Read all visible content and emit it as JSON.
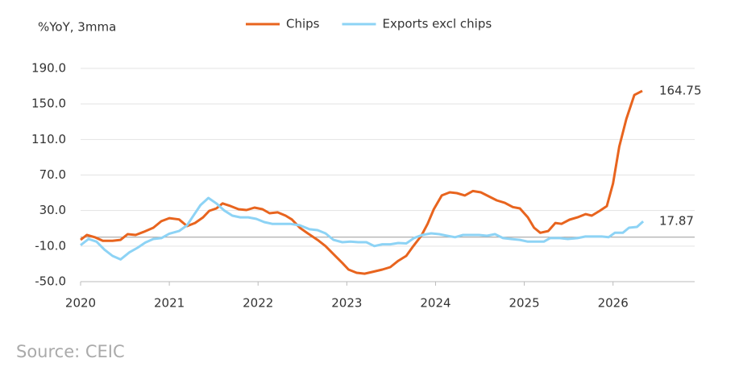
{
  "chart_data": {
    "type": "line",
    "y_axis_label": "%YoY, 3mma",
    "source": "Source: CEIC",
    "xlim": [
      2020,
      2026.92
    ],
    "xticks": [
      2020,
      2021,
      2022,
      2023,
      2024,
      2025,
      2026
    ],
    "ylim": [
      -50,
      190
    ],
    "yticks": [
      {
        "value": 190,
        "label": "190.0"
      },
      {
        "value": 150,
        "label": "150.0"
      },
      {
        "value": 110,
        "label": "110.0"
      },
      {
        "value": 70,
        "label": "70.0"
      },
      {
        "value": 30,
        "label": "30.0"
      },
      {
        "value": -10,
        "label": "-10.0"
      },
      {
        "value": -50,
        "label": "-50.0"
      }
    ],
    "grid": true,
    "series": [
      {
        "name": "Chips",
        "color": "#e8641e",
        "x": [
          2020,
          2020.07,
          2020.16,
          2020.25,
          2020.36,
          2020.45,
          2020.53,
          2020.62,
          2020.71,
          2020.82,
          2020.91,
          2021,
          2021.11,
          2021.2,
          2021.29,
          2021.38,
          2021.45,
          2021.53,
          2021.6,
          2021.69,
          2021.78,
          2021.87,
          2021.96,
          2022.05,
          2022.13,
          2022.22,
          2022.31,
          2022.38,
          2022.47,
          2022.56,
          2022.67,
          2022.76,
          2022.85,
          2022.95,
          2023.02,
          2023.11,
          2023.2,
          2023.29,
          2023.4,
          2023.49,
          2023.58,
          2023.67,
          2023.75,
          2023.84,
          2023.91,
          2023.98,
          2024.07,
          2024.16,
          2024.24,
          2024.33,
          2024.42,
          2024.51,
          2024.6,
          2024.69,
          2024.78,
          2024.87,
          2024.95,
          2025.04,
          2025.11,
          2025.18,
          2025.27,
          2025.35,
          2025.42,
          2025.51,
          2025.6,
          2025.69,
          2025.76,
          2025.85,
          2025.93,
          2026,
          2026.07,
          2026.15,
          2026.24,
          2026.33
        ],
        "values": [
          -3,
          2.5,
          0,
          -4,
          -4,
          -3,
          3.4,
          2.5,
          6,
          10.7,
          18,
          21.5,
          20,
          12.5,
          16,
          22.4,
          29.7,
          32.4,
          38,
          35,
          31.5,
          30.6,
          33.3,
          31.5,
          27,
          28,
          24.3,
          20,
          10.7,
          4.3,
          -3,
          -10,
          -19,
          -29,
          -36.4,
          -40,
          -41,
          -39,
          -36.4,
          -33.7,
          -26.5,
          -21,
          -10,
          1.6,
          15,
          31.5,
          47,
          50.5,
          49.6,
          47,
          52,
          50.5,
          46,
          41.5,
          38.7,
          34,
          32.4,
          22.4,
          10.7,
          5,
          7,
          16,
          15,
          19.7,
          22.4,
          26,
          24.3,
          29.7,
          35,
          60.5,
          102,
          133,
          160,
          164.75
        ]
      },
      {
        "name": "Exports excl chips",
        "color": "#8dd3f5",
        "x": [
          2020,
          2020.09,
          2020.18,
          2020.27,
          2020.36,
          2020.45,
          2020.55,
          2020.64,
          2020.73,
          2020.82,
          2020.91,
          2021,
          2021.11,
          2021.2,
          2021.27,
          2021.35,
          2021.44,
          2021.53,
          2021.62,
          2021.71,
          2021.8,
          2021.89,
          2021.98,
          2022.07,
          2022.16,
          2022.27,
          2022.36,
          2022.47,
          2022.58,
          2022.67,
          2022.76,
          2022.85,
          2022.95,
          2023.04,
          2023.13,
          2023.22,
          2023.31,
          2023.4,
          2023.49,
          2023.58,
          2023.67,
          2023.76,
          2023.85,
          2023.95,
          2024.04,
          2024.13,
          2024.22,
          2024.31,
          2024.4,
          2024.49,
          2024.58,
          2024.67,
          2024.76,
          2024.85,
          2024.95,
          2025.04,
          2025.13,
          2025.22,
          2025.29,
          2025.4,
          2025.49,
          2025.6,
          2025.69,
          2025.78,
          2025.87,
          2025.95,
          2026.02,
          2026.11,
          2026.18,
          2026.27,
          2026.34
        ],
        "values": [
          -9,
          -2,
          -5,
          -14,
          -21,
          -25,
          -17,
          -12,
          -6,
          -2,
          -1,
          4,
          7,
          13.4,
          24,
          36,
          44.2,
          38,
          30,
          24.3,
          22.4,
          22.4,
          20.6,
          17,
          15,
          15,
          15,
          13.4,
          9,
          8,
          4.3,
          -3,
          -5.6,
          -5,
          -5.6,
          -5.6,
          -10,
          -8,
          -8,
          -6.5,
          -7,
          -0.8,
          2.5,
          4.3,
          3.4,
          1.6,
          0,
          2.5,
          2.5,
          2.5,
          1.6,
          3.4,
          -1,
          -2,
          -3,
          -5,
          -5,
          -5,
          -1,
          -1,
          -2,
          -1,
          0.8,
          0.8,
          0.8,
          0,
          5,
          5,
          10.7,
          11.6,
          17.87
        ]
      }
    ]
  }
}
